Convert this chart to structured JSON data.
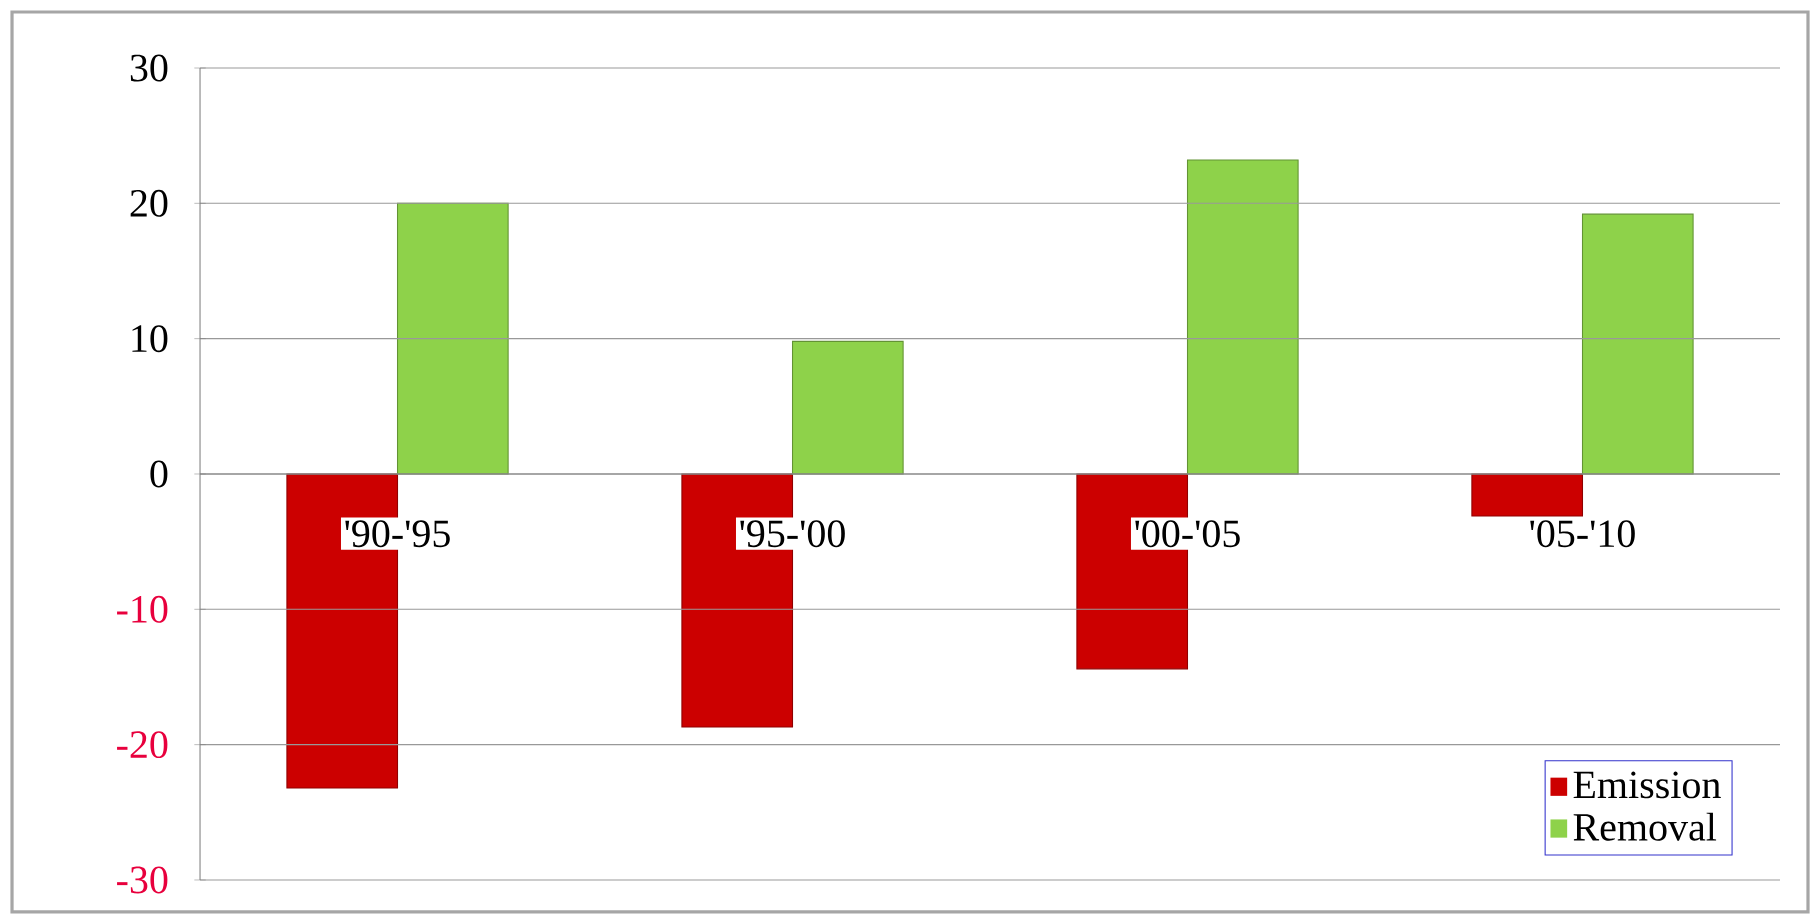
{
  "chart_data": {
    "type": "bar",
    "categories": [
      "'90-'95",
      "'95-'00",
      "'00-'05",
      "'05-'10"
    ],
    "series": [
      {
        "name": "Emission",
        "color": "#cc0000",
        "values": [
          -23.2,
          -18.7,
          -14.4,
          -3.1
        ]
      },
      {
        "name": "Removal",
        "color": "#8ed24a",
        "values": [
          20,
          9.8,
          23.2,
          19.2
        ]
      }
    ],
    "ylim": [
      -30,
      30
    ],
    "yticks": [
      -30,
      -20,
      -10,
      0,
      10,
      20,
      30
    ],
    "grid": "y",
    "legend": "bottom right"
  }
}
